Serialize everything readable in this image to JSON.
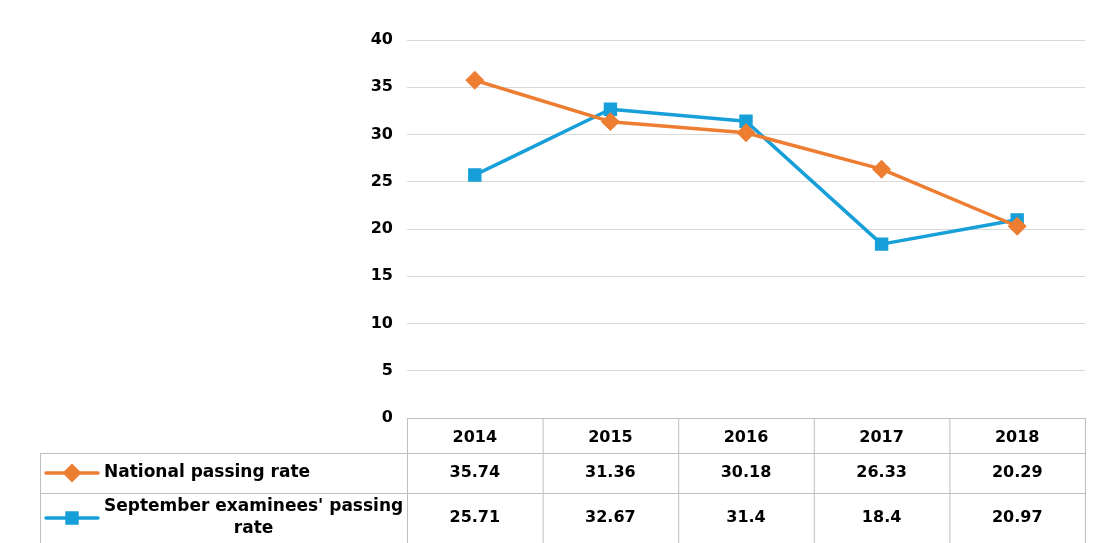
{
  "chart_data": {
    "type": "line",
    "categories": [
      "2014",
      "2015",
      "2016",
      "2017",
      "2018"
    ],
    "series": [
      {
        "name": "National passing rate",
        "color": "#ed7d31",
        "marker": "diamond",
        "values": [
          35.74,
          31.36,
          30.18,
          26.33,
          20.29
        ]
      },
      {
        "name": "September examinees' passing rate",
        "color": "#169fd8",
        "marker": "square",
        "values": [
          25.71,
          32.67,
          31.4,
          18.4,
          20.97
        ]
      }
    ],
    "ylim": [
      0,
      40
    ],
    "yticks": [
      0,
      5,
      10,
      15,
      20,
      25,
      30,
      35,
      40
    ],
    "grid": "y",
    "legend": "bottom",
    "data_labels": true,
    "line_style": "solid"
  }
}
